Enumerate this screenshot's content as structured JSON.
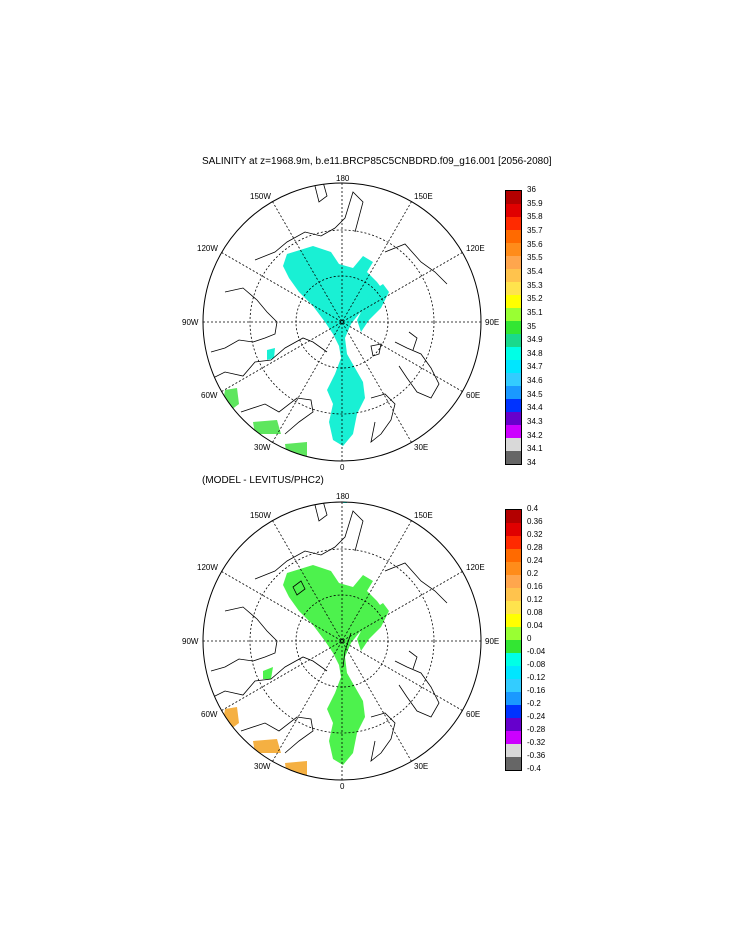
{
  "panels": [
    {
      "title": "SALINITY at z=1968.9m, b.e11.BRCP85C5CNBDRD.f09_g16.001 [2056-2080]",
      "lon_labels": {
        "l180": "180",
        "l150e": "150E",
        "l120e": "120E",
        "l90e": "90E",
        "l60e": "60E",
        "l30e": "30E",
        "l0": "0",
        "l30w": "30W",
        "l60w": "60W",
        "l90w": "90W",
        "l120w": "120W",
        "l150w": "150W"
      },
      "colorbar": {
        "labels": [
          "36",
          "35.9",
          "35.8",
          "35.7",
          "35.6",
          "35.5",
          "35.4",
          "35.3",
          "35.2",
          "35.1",
          "35",
          "34.9",
          "34.8",
          "34.7",
          "34.6",
          "34.5",
          "34.4",
          "34.3",
          "34.2",
          "34.1",
          "34"
        ],
        "colors": [
          "#b30000",
          "#e00000",
          "#ff2a00",
          "#ff6a00",
          "#ff8c1a",
          "#ffa64d",
          "#ffc34d",
          "#ffe34d",
          "#ffff00",
          "#99ff33",
          "#33e633",
          "#1ad98c",
          "#00ffe6",
          "#00e6ff",
          "#33ccff",
          "#1a99ff",
          "#0033ff",
          "#6600cc",
          "#cc00ff",
          "#d9d9d9",
          "#666666"
        ]
      },
      "field_color": "#19f0d4",
      "patch_color": "#5ee65e"
    },
    {
      "title": "(MODEL - LEVITUS/PHC2)",
      "lon_labels": {
        "l180": "180",
        "l150e": "150E",
        "l120e": "120E",
        "l90e": "90E",
        "l60e": "60E",
        "l30e": "30E",
        "l0": "0",
        "l30w": "30W",
        "l60w": "60W",
        "l90w": "90W",
        "l120w": "120W",
        "l150w": "150W"
      },
      "colorbar": {
        "labels": [
          "0.4",
          "0.36",
          "0.32",
          "0.28",
          "0.24",
          "0.2",
          "0.16",
          "0.12",
          "0.08",
          "0.04",
          "0",
          "-0.04",
          "-0.08",
          "-0.12",
          "-0.16",
          "-0.2",
          "-0.24",
          "-0.28",
          "-0.32",
          "-0.36",
          "-0.4"
        ],
        "colors": [
          "#b30000",
          "#e00000",
          "#ff2a00",
          "#ff6a00",
          "#ff8c1a",
          "#ffa64d",
          "#ffc34d",
          "#ffe34d",
          "#ffff00",
          "#99ff33",
          "#33e633",
          "#00ffe6",
          "#00e6ff",
          "#33ccff",
          "#1a99ff",
          "#0033ff",
          "#6600cc",
          "#cc00ff",
          "#d9d9d9",
          "#666666"
        ]
      },
      "field_color": "#4df24d",
      "patch_color": "#f5b042"
    }
  ]
}
